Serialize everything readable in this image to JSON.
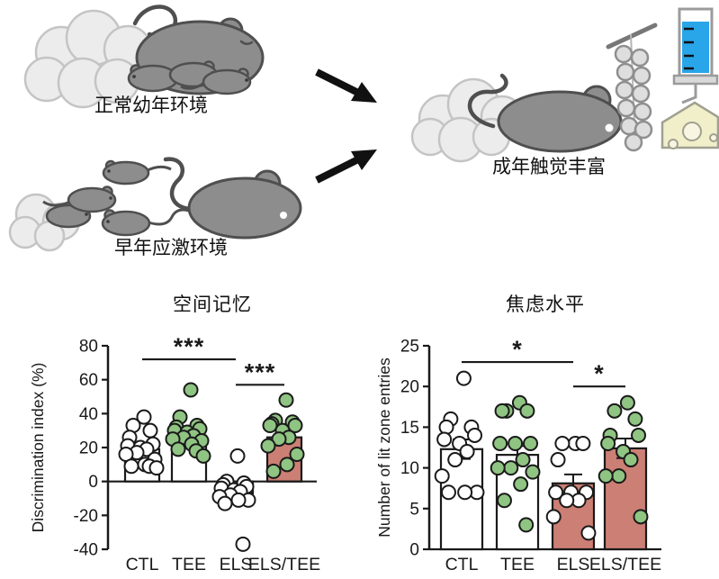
{
  "illustration": {
    "normal_env_label": "正常幼年环境",
    "stress_env_label": "早年应激环境",
    "adult_enrichment_label": "成年触觉丰富",
    "icons": [
      "mother-mouse-with-pups",
      "bedding-clouds",
      "scattered-pups",
      "large-mouse",
      "arrow-right-down",
      "arrow-right-up",
      "adult-mouse",
      "bead-string-tactile-toy",
      "syringe",
      "cheese"
    ]
  },
  "colors": {
    "bar_white": "#ffffff",
    "bar_salmon": "#cc7f74",
    "point_white": "#ffffff",
    "point_green": "#8fc482",
    "outline_black": "#1a1a1a",
    "mouse_gray": "#8d8d8d",
    "mouse_outline": "#4f4f4f",
    "cloud_gray": "#ececec",
    "cloud_outline": "#c4c4c4",
    "syringe_blue": "#29a5e9",
    "cheese_yellow": "#f1eeca"
  },
  "chart_data": [
    {
      "type": "bar",
      "title": "空间记忆",
      "ylabel": "Discrimination index (%)",
      "ylim": [
        -40,
        80
      ],
      "yticks": [
        80,
        60,
        40,
        20,
        0,
        -20,
        -40
      ],
      "grid": false,
      "categories": [
        "CTL",
        "TEE",
        "ELS",
        "ELS/TEE"
      ],
      "bars": [
        {
          "category": "CTL",
          "mean": 19,
          "sem": 2,
          "fill": "#ffffff",
          "point_fill": "#ffffff",
          "points": [
            38,
            33,
            30,
            26,
            22,
            21,
            20,
            19,
            17,
            16,
            13,
            10,
            9,
            9,
            8
          ]
        },
        {
          "category": "TEE",
          "mean": 27,
          "sem": 2.5,
          "fill": "#ffffff",
          "point_fill": "#8fc482",
          "points": [
            54,
            38,
            33,
            32,
            31,
            30,
            29,
            27,
            26,
            25,
            24,
            22,
            19,
            18,
            15
          ]
        },
        {
          "category": "ELS",
          "mean": -7,
          "sem": 3,
          "fill": "#cc7f74",
          "point_fill": "#ffffff",
          "points": [
            15,
            0,
            -1,
            -2,
            -3,
            -4,
            -5,
            -6,
            -8,
            -9,
            -11,
            -11,
            -13,
            -37
          ]
        },
        {
          "category": "ELS/TEE",
          "mean": 26,
          "sem": 3,
          "fill": "#cc7f74",
          "point_fill": "#8fc482",
          "points": [
            48,
            36,
            35,
            34,
            33,
            33,
            30,
            26,
            25,
            21,
            16,
            10,
            6
          ]
        }
      ],
      "significance": [
        {
          "from": 0,
          "to": 2,
          "label": "***",
          "y": 72
        },
        {
          "from": 2,
          "to": 3,
          "label": "***",
          "y": 57
        }
      ]
    },
    {
      "type": "bar",
      "title": "焦虑水平",
      "ylabel": "Number of lit zone entries",
      "ylim": [
        0,
        25
      ],
      "yticks": [
        25,
        20,
        15,
        10,
        5,
        0
      ],
      "grid": false,
      "categories": [
        "CTL",
        "TEE",
        "ELS",
        "ELS/TEE"
      ],
      "bars": [
        {
          "category": "CTL",
          "mean": 12.3,
          "sem": 1.2,
          "fill": "#ffffff",
          "point_fill": "#ffffff",
          "points": [
            21,
            16,
            15,
            15,
            14,
            13.5,
            13,
            12,
            11,
            9,
            7,
            7,
            7
          ]
        },
        {
          "category": "TEE",
          "mean": 11.6,
          "sem": 1.1,
          "fill": "#ffffff",
          "point_fill": "#8fc482",
          "points": [
            18,
            17,
            17,
            17,
            13,
            13,
            13,
            11,
            10,
            10,
            9.5,
            8,
            6,
            3
          ]
        },
        {
          "category": "ELS",
          "mean": 8.1,
          "sem": 1.1,
          "fill": "#cc7f74",
          "point_fill": "#ffffff",
          "points": [
            13,
            13,
            13,
            11,
            7,
            7,
            7,
            6,
            6,
            4,
            2
          ]
        },
        {
          "category": "ELS/TEE",
          "mean": 12.4,
          "sem": 1.2,
          "fill": "#cc7f74",
          "point_fill": "#8fc482",
          "points": [
            18,
            17,
            16,
            14,
            14,
            13,
            12,
            11,
            9,
            9,
            4
          ]
        }
      ],
      "significance": [
        {
          "from": 0,
          "to": 2,
          "label": "*",
          "y": 23
        },
        {
          "from": 2,
          "to": 3,
          "label": "*",
          "y": 20
        }
      ]
    }
  ]
}
